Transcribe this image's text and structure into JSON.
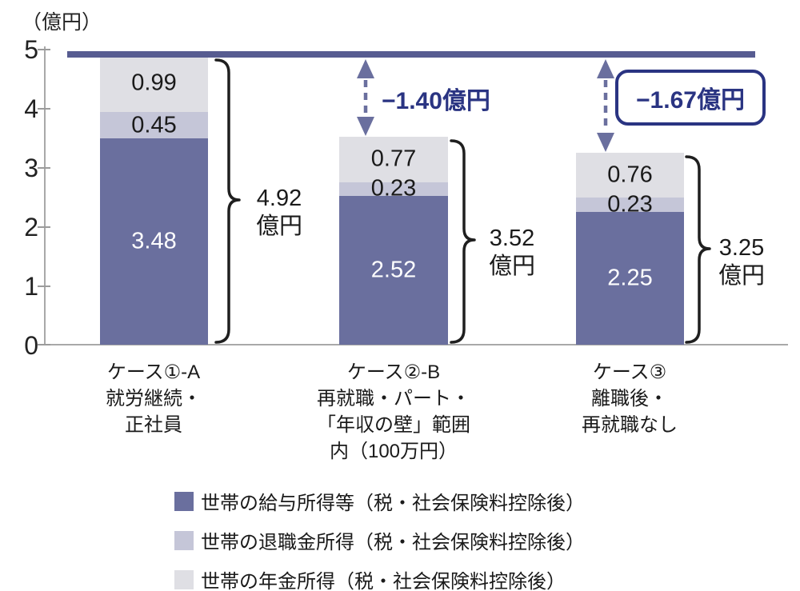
{
  "chart_data": {
    "type": "stacked-bar",
    "y_axis_title": "（億円）",
    "ylabel": "",
    "xlabel": "",
    "ylim": [
      0,
      5
    ],
    "y_ticks": [
      "5",
      "4",
      "3",
      "2",
      "1",
      "0"
    ],
    "grid": false,
    "legend_position": "bottom",
    "reference_line_value": 4.92,
    "categories": [
      {
        "label_lines": [
          "ケース①-A",
          "就労継続・",
          "正社員"
        ],
        "total": "4.92",
        "total_unit": "億円"
      },
      {
        "label_lines": [
          "ケース②-B",
          "再就職・パート・",
          "「年収の壁」範囲",
          "内（100万円）"
        ],
        "total": "3.52",
        "total_unit": "億円",
        "difference_vs_case1": "−1.40億円"
      },
      {
        "label_lines": [
          "ケース③",
          "離職後・",
          "再就職なし"
        ],
        "total": "3.25",
        "total_unit": "億円",
        "difference_vs_case1": "−1.67億円"
      }
    ],
    "series": [
      {
        "name": "世帯の給与所得等（税・社会保険料控除後）",
        "color": "#6a6f9e",
        "values": [
          3.48,
          2.52,
          2.25
        ]
      },
      {
        "name": "世帯の退職金所得（税・社会保険料控除後）",
        "color": "#c5c6d8",
        "values": [
          0.45,
          0.23,
          0.23
        ]
      },
      {
        "name": "世帯の年金所得（税・社会保険料控除後）",
        "color": "#dfdfe4",
        "values": [
          0.99,
          0.77,
          0.76
        ]
      }
    ],
    "totals": [
      "4.92億円",
      "3.52億円",
      "3.25億円"
    ]
  },
  "colors": {
    "salary_segment": "#6a6f9e",
    "retirement_segment": "#c5c6d8",
    "pension_segment": "#dfdfe4",
    "reference_line": "#575c91",
    "arrow": "#6a6f9e",
    "difference_text": "#2a3482",
    "difference_box_border": "#2a3482",
    "axis": "#a9a9a9",
    "text": "#1a1a1a",
    "bar_value_light_text": "#ffffff"
  }
}
